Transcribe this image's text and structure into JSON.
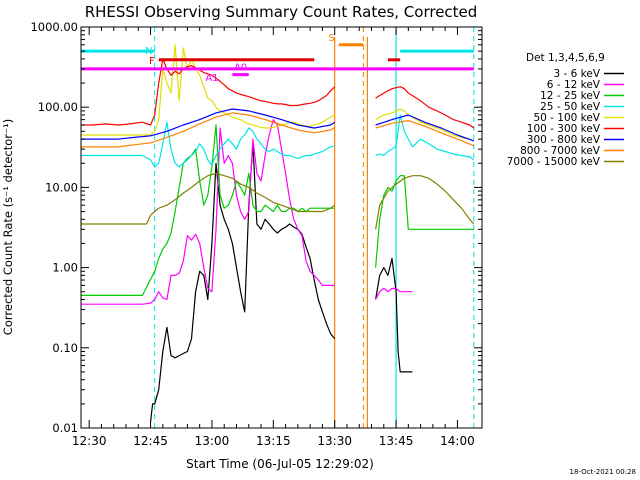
{
  "chart_data": {
    "type": "line",
    "title": "RHESSI Observing Summary Count Rates, Corrected",
    "xlabel": "Start Time (06-Jul-05 12:29:02)",
    "ylabel": "Corrected Count Rate (s⁻¹ detector⁻¹)",
    "ylog": true,
    "ylim": [
      0.01,
      1000
    ],
    "xlim_minutes": [
      -1,
      97
    ],
    "x_tick_labels": [
      "12:30",
      "12:45",
      "13:00",
      "13:15",
      "13:30",
      "13:45",
      "14:00"
    ],
    "x_tick_minutes": [
      1,
      16,
      31,
      46,
      61,
      76,
      91
    ],
    "y_ticks": [
      0.01,
      0.1,
      1,
      10,
      100,
      1000
    ],
    "y_tick_labels": [
      "0.01",
      "0.10",
      "1.00",
      "10.00",
      "100.00",
      "1000.00"
    ],
    "legend_title": "Det 1,3,4,5,6,9",
    "legend_placement": "right, outside",
    "footer": "18-Oct-2021 00:28",
    "markers": {
      "cyan_dashed_x": [
        -1,
        17,
        95
      ],
      "cyan_solid_x": [
        76
      ],
      "orange_solid_x": [
        61,
        69
      ],
      "orange_dashed_x": [
        68
      ]
    },
    "flags": [
      {
        "label": "N",
        "color": "#00e5e5",
        "y": 500,
        "segments": [
          [
            -1,
            17
          ],
          [
            77,
            95
          ]
        ]
      },
      {
        "label": "F",
        "color": "#e00000",
        "y": 390,
        "segments": [
          [
            18,
            56
          ],
          [
            74,
            77
          ]
        ]
      },
      {
        "label": "S",
        "color": "#ff8000",
        "y": 600,
        "segments": [
          [
            62,
            68
          ]
        ]
      },
      {
        "label": "A1",
        "color": "#ff00ff",
        "y": 300,
        "segments": [
          [
            -1,
            95
          ]
        ]
      },
      {
        "label": "A0",
        "color": "#ff00ff",
        "y": 255,
        "segments": [
          [
            36,
            40
          ]
        ]
      }
    ],
    "gaps": [
      [
        61,
        71
      ]
    ],
    "series": [
      {
        "name": "3 - 6 keV",
        "color": "#000000",
        "x": [
          16,
          16.5,
          17,
          18,
          19,
          20,
          21,
          22,
          23,
          24,
          25,
          26,
          27,
          28,
          29,
          30,
          31,
          32,
          33,
          34,
          35,
          36,
          37,
          38,
          39,
          40,
          41,
          42,
          43,
          44,
          45,
          46,
          47,
          48,
          49,
          50,
          51,
          52,
          53,
          54,
          55,
          56,
          57,
          58,
          59,
          60,
          61,
          71,
          72,
          73,
          74,
          75,
          76,
          76.5,
          77,
          78,
          79,
          80
        ],
        "y": [
          0.012,
          0.02,
          0.02,
          0.03,
          0.09,
          0.18,
          0.08,
          0.075,
          0.08,
          0.085,
          0.09,
          0.13,
          0.5,
          0.9,
          0.8,
          0.4,
          2,
          20,
          6,
          4,
          3,
          2,
          1,
          0.5,
          0.28,
          6,
          35,
          3.5,
          3,
          4,
          3.5,
          3,
          2.7,
          3,
          3.2,
          3.5,
          3.2,
          3,
          2.6,
          1.8,
          1.3,
          0.7,
          0.4,
          0.28,
          0.2,
          0.15,
          0.13,
          0.4,
          0.8,
          1,
          0.8,
          1.3,
          0.5,
          0.09,
          0.05,
          0.05,
          0.05,
          0.05
        ]
      },
      {
        "name": "6 - 12 keV",
        "color": "#ff00ff",
        "x": [
          -1,
          2,
          5,
          8,
          11,
          14,
          16,
          17,
          18,
          19,
          20,
          21,
          22,
          23,
          24,
          25,
          26,
          27,
          28,
          29,
          30,
          31,
          32,
          33,
          34,
          35,
          36,
          37,
          38,
          39,
          40,
          41,
          42,
          43,
          44,
          45,
          46,
          47,
          48,
          49,
          50,
          51,
          52,
          53,
          54,
          55,
          56,
          57,
          58,
          59,
          60,
          61,
          71,
          72,
          73,
          74,
          75,
          76,
          77,
          78,
          79,
          80
        ],
        "y": [
          0.35,
          0.35,
          0.35,
          0.35,
          0.35,
          0.35,
          0.36,
          0.4,
          0.5,
          0.42,
          0.4,
          0.8,
          0.8,
          0.85,
          1.2,
          2.5,
          2.2,
          2.6,
          2,
          1,
          0.55,
          0.5,
          3,
          55,
          20,
          25,
          20,
          8,
          5,
          4,
          5,
          40,
          15,
          12,
          25,
          45,
          70,
          60,
          30,
          15,
          7,
          4,
          3,
          2.5,
          1.2,
          0.9,
          0.8,
          0.7,
          0.6,
          0.6,
          0.6,
          0.6,
          0.4,
          0.5,
          0.55,
          0.5,
          0.55,
          0.55,
          0.5,
          0.5,
          0.5,
          0.5
        ]
      },
      {
        "name": "12 - 25 keV",
        "color": "#00cc00",
        "x": [
          -1,
          2,
          5,
          8,
          11,
          14,
          17,
          18,
          19,
          20,
          21,
          22,
          23,
          24,
          25,
          26,
          27,
          28,
          29,
          30,
          31,
          32,
          33,
          34,
          35,
          36,
          37,
          38,
          39,
          40,
          41,
          42,
          43,
          44,
          45,
          46,
          47,
          48,
          49,
          50,
          51,
          52,
          53,
          54,
          55,
          56,
          57,
          58,
          59,
          60,
          61,
          71,
          72,
          73,
          74,
          75,
          76,
          77,
          78,
          79,
          80,
          82,
          84,
          86,
          88,
          90,
          92,
          94,
          95
        ],
        "y": [
          0.45,
          0.45,
          0.45,
          0.45,
          0.45,
          0.45,
          0.9,
          1.3,
          1.7,
          2,
          2.7,
          5,
          10,
          20,
          23,
          25,
          30,
          12,
          6,
          8,
          18,
          60,
          8,
          5.5,
          6,
          8,
          12,
          10,
          8,
          15,
          6,
          5,
          5,
          6,
          5.5,
          5,
          6,
          5,
          5,
          5.5,
          5.5,
          5,
          5.5,
          5,
          5.5,
          5.5,
          5.5,
          5.5,
          5.5,
          5.5,
          5.5,
          1,
          4,
          8,
          10,
          9,
          12,
          14,
          14,
          3,
          3,
          3,
          3,
          3,
          3,
          3,
          3,
          3,
          3
        ]
      },
      {
        "name": "25 - 50 keV",
        "color": "#00e5e5",
        "x": [
          -1,
          2,
          5,
          8,
          11,
          14,
          16,
          17,
          18,
          19,
          20,
          21,
          22,
          23,
          24,
          25,
          26,
          27,
          28,
          29,
          30,
          31,
          32,
          33,
          34,
          35,
          36,
          37,
          38,
          39,
          40,
          41,
          42,
          43,
          44,
          45,
          46,
          47,
          48,
          49,
          50,
          51,
          52,
          53,
          54,
          55,
          56,
          57,
          58,
          59,
          60,
          61,
          71,
          72,
          73,
          74,
          75,
          76,
          77,
          78,
          79,
          80,
          82,
          84,
          86,
          88,
          90,
          92,
          94,
          95
        ],
        "y": [
          25,
          25,
          25,
          25,
          25,
          25,
          22,
          18,
          20,
          35,
          65,
          30,
          20,
          18,
          20,
          22,
          25,
          28,
          35,
          30,
          22,
          19,
          25,
          30,
          35,
          40,
          35,
          30,
          40,
          45,
          55,
          50,
          40,
          35,
          30,
          28,
          30,
          28,
          26,
          25,
          25,
          24,
          23,
          24,
          25,
          25,
          26,
          27,
          28,
          30,
          32,
          33,
          25,
          26,
          25,
          28,
          30,
          33,
          80,
          50,
          40,
          32,
          40,
          35,
          30,
          28,
          26,
          25,
          24,
          22
        ]
      },
      {
        "name": "50 - 100 keV",
        "color": "#e0e000",
        "x": [
          -1,
          2,
          5,
          8,
          11,
          14,
          16,
          17,
          18,
          19,
          20,
          21,
          22,
          23,
          24,
          25,
          26,
          27,
          28,
          29,
          30,
          31,
          32,
          33,
          34,
          35,
          36,
          37,
          38,
          39,
          40,
          41,
          42,
          43,
          44,
          45,
          46,
          47,
          48,
          49,
          50,
          51,
          52,
          53,
          54,
          55,
          56,
          57,
          58,
          59,
          60,
          61,
          71,
          72,
          73,
          74,
          75,
          76,
          77,
          78,
          79,
          80,
          82,
          84,
          86,
          88,
          90,
          92,
          94,
          95
        ],
        "y": [
          45,
          45,
          45,
          45,
          45,
          45,
          45,
          50,
          70,
          300,
          200,
          150,
          600,
          120,
          550,
          300,
          400,
          300,
          250,
          180,
          130,
          120,
          100,
          90,
          85,
          80,
          75,
          72,
          70,
          65,
          62,
          60,
          58,
          56,
          55,
          55,
          56,
          58,
          60,
          62,
          65,
          65,
          62,
          60,
          58,
          58,
          60,
          62,
          65,
          70,
          75,
          80,
          70,
          75,
          80,
          82,
          85,
          90,
          95,
          90,
          80,
          75,
          65,
          60,
          55,
          50,
          45,
          42,
          40,
          38
        ]
      },
      {
        "name": "100 - 300 keV",
        "color": "#ff0000",
        "x": [
          -1,
          2,
          5,
          8,
          11,
          14,
          16,
          17,
          18,
          19,
          20,
          21,
          22,
          23,
          24,
          25,
          26,
          27,
          28,
          29,
          30,
          31,
          32,
          33,
          34,
          35,
          36,
          37,
          38,
          39,
          40,
          41,
          42,
          43,
          44,
          45,
          46,
          47,
          48,
          49,
          50,
          51,
          52,
          53,
          54,
          55,
          56,
          57,
          58,
          59,
          60,
          61,
          71,
          72,
          73,
          74,
          75,
          76,
          77,
          78,
          79,
          80,
          82,
          84,
          86,
          88,
          90,
          92,
          94,
          95
        ],
        "y": [
          60,
          60,
          62,
          60,
          62,
          65,
          60,
          80,
          200,
          400,
          300,
          250,
          280,
          260,
          300,
          320,
          330,
          310,
          290,
          270,
          260,
          250,
          230,
          210,
          190,
          170,
          160,
          150,
          145,
          140,
          135,
          130,
          125,
          120,
          118,
          115,
          112,
          110,
          110,
          108,
          105,
          105,
          105,
          108,
          110,
          112,
          115,
          120,
          130,
          140,
          160,
          180,
          130,
          140,
          150,
          160,
          170,
          175,
          180,
          170,
          150,
          140,
          120,
          100,
          90,
          80,
          70,
          65,
          60,
          55
        ]
      },
      {
        "name": "300 - 800 keV",
        "color": "#0000ff",
        "x": [
          -1,
          4,
          8,
          12,
          16,
          20,
          24,
          28,
          32,
          36,
          40,
          44,
          48,
          52,
          56,
          60,
          61,
          71,
          75,
          79,
          83,
          87,
          91,
          95
        ],
        "y": [
          40,
          40,
          40,
          42,
          44,
          50,
          60,
          70,
          85,
          95,
          90,
          80,
          70,
          60,
          55,
          60,
          65,
          60,
          70,
          80,
          65,
          55,
          45,
          38
        ]
      },
      {
        "name": "800 - 7000 keV",
        "color": "#ff8000",
        "x": [
          -1,
          4,
          8,
          12,
          16,
          20,
          24,
          28,
          32,
          36,
          40,
          44,
          48,
          52,
          56,
          60,
          61,
          71,
          75,
          79,
          83,
          87,
          91,
          95
        ],
        "y": [
          32,
          32,
          32,
          34,
          36,
          42,
          50,
          62,
          75,
          85,
          80,
          70,
          60,
          52,
          48,
          52,
          56,
          55,
          63,
          68,
          58,
          48,
          40,
          33
        ]
      },
      {
        "name": "7000 - 15000 keV",
        "color": "#808000",
        "x": [
          -1,
          4,
          8,
          12,
          15,
          16,
          17,
          18,
          20,
          22,
          24,
          26,
          28,
          30,
          32,
          34,
          36,
          38,
          40,
          42,
          44,
          46,
          48,
          50,
          52,
          54,
          56,
          58,
          60,
          61,
          71,
          72,
          74,
          76,
          78,
          80,
          82,
          84,
          86,
          88,
          90,
          92,
          94,
          95
        ],
        "y": [
          3.5,
          3.5,
          3.5,
          3.5,
          3.5,
          4.5,
          5,
          5.5,
          6,
          7,
          8.5,
          10,
          12,
          14,
          15,
          14,
          13,
          11,
          10,
          8.5,
          7.5,
          6.5,
          6,
          5.5,
          5,
          5,
          5,
          5,
          5.5,
          6,
          3,
          6,
          9,
          11,
          13,
          14,
          14,
          13,
          11,
          9,
          7,
          5.5,
          4,
          3.5
        ]
      }
    ]
  }
}
